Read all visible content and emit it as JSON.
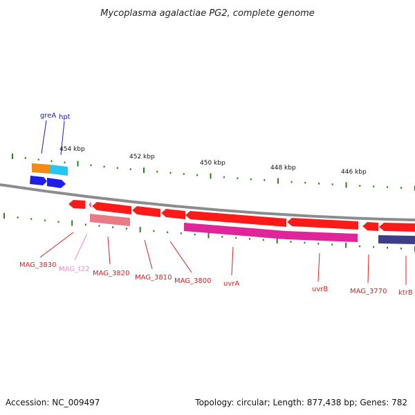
{
  "title": "Mycoplasma agalactiae PG2, complete genome",
  "footer": {
    "accession": "Accession: NC_009497",
    "summary": "Topology: circular; Length: 877,438 bp; Genes: 782"
  },
  "ruler_labels": [
    "454 kbp",
    "452 kbp",
    "450 kbp",
    "448 kbp",
    "446 kbp"
  ],
  "colors": {
    "backbone": "#8c8c8c",
    "tick": "#2e7d1e",
    "cds": "#ff1a1a",
    "cds_label": "#d42020",
    "trna": "#e87b85",
    "trna_label": "#f08cc0",
    "misc": "#e0259a",
    "forward_blue": "#1d1ded",
    "forward_label": "#1a1ab4",
    "orange": "#f48b10",
    "cyan": "#26c6f0",
    "ktr": "#3d3d8a"
  },
  "forward_labels": [
    "greA",
    "hpt"
  ],
  "reverse_labels": [
    "MAG_3830",
    "MAG_t22",
    "MAG_3820",
    "MAG_3810",
    "MAG_3800",
    "uvrA",
    "uvrB",
    "MAG_3770",
    "ktrB"
  ]
}
